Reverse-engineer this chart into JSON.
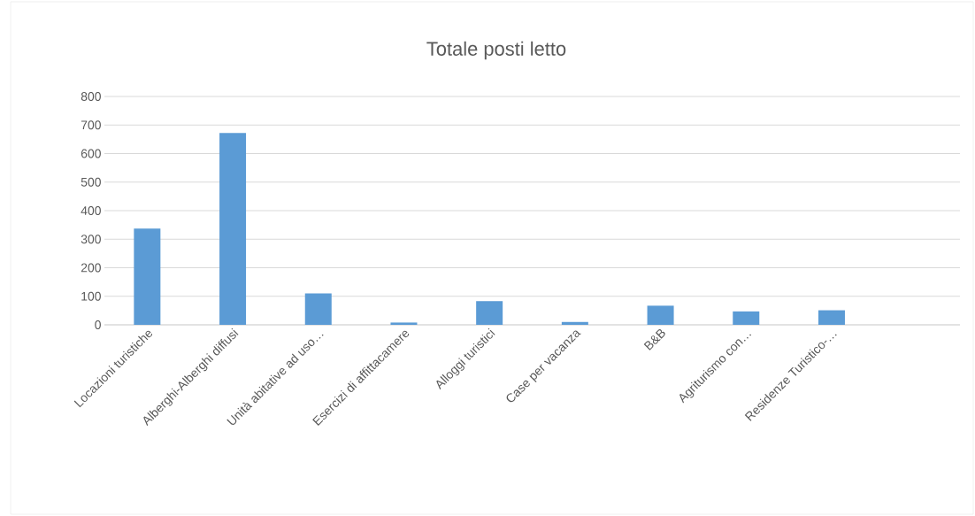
{
  "chart_data": {
    "type": "bar",
    "title": "Totale posti letto",
    "categories": [
      "Locazioni turistiche",
      "Alberghi-Alberghi diffusi",
      "Unità abitative ad uso…",
      "Esercizi di affittacamere",
      "Alloggi turistici",
      "Case per vacanza",
      "B&B",
      "Agriturismo con…",
      "Residenze Turistico-…",
      null
    ],
    "values": [
      337,
      672,
      110,
      8,
      83,
      10,
      67,
      47,
      51,
      null
    ],
    "color": "#5b9bd5",
    "ylim": [
      0,
      800
    ],
    "yticks": [
      0,
      100,
      200,
      300,
      400,
      500,
      600,
      700,
      800
    ],
    "grid": "y"
  }
}
